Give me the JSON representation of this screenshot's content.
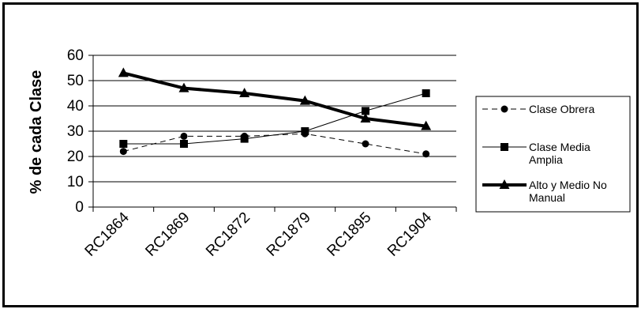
{
  "chart_data": {
    "type": "line",
    "categories": [
      "RC1864",
      "RC1869",
      "RC1872",
      "RC1879",
      "RC1895",
      "RC1904"
    ],
    "ylabel": "% de cada Clase",
    "xlabel": "",
    "ylim": [
      0,
      60
    ],
    "yticks": [
      0,
      10,
      20,
      30,
      40,
      50,
      60
    ],
    "grid": true,
    "legend_position": "right",
    "series": [
      {
        "name": "Clase Obrera",
        "legend_lines": [
          "Clase Obrera"
        ],
        "values": [
          22,
          28,
          28,
          29,
          25,
          21
        ],
        "style": "dashed",
        "marker": "circle",
        "color": "#000000"
      },
      {
        "name": "Clase Media Amplia",
        "legend_lines": [
          "Clase Media",
          "Amplia"
        ],
        "values": [
          25,
          25,
          27,
          30,
          38,
          45
        ],
        "style": "solid",
        "marker": "square",
        "color": "#000000"
      },
      {
        "name": "Alto y Medio No Manual",
        "legend_lines": [
          "Alto y Medio No",
          "Manual"
        ],
        "values": [
          53,
          47,
          45,
          42,
          35,
          32
        ],
        "style": "bold",
        "marker": "triangle",
        "color": "#000000"
      }
    ]
  }
}
